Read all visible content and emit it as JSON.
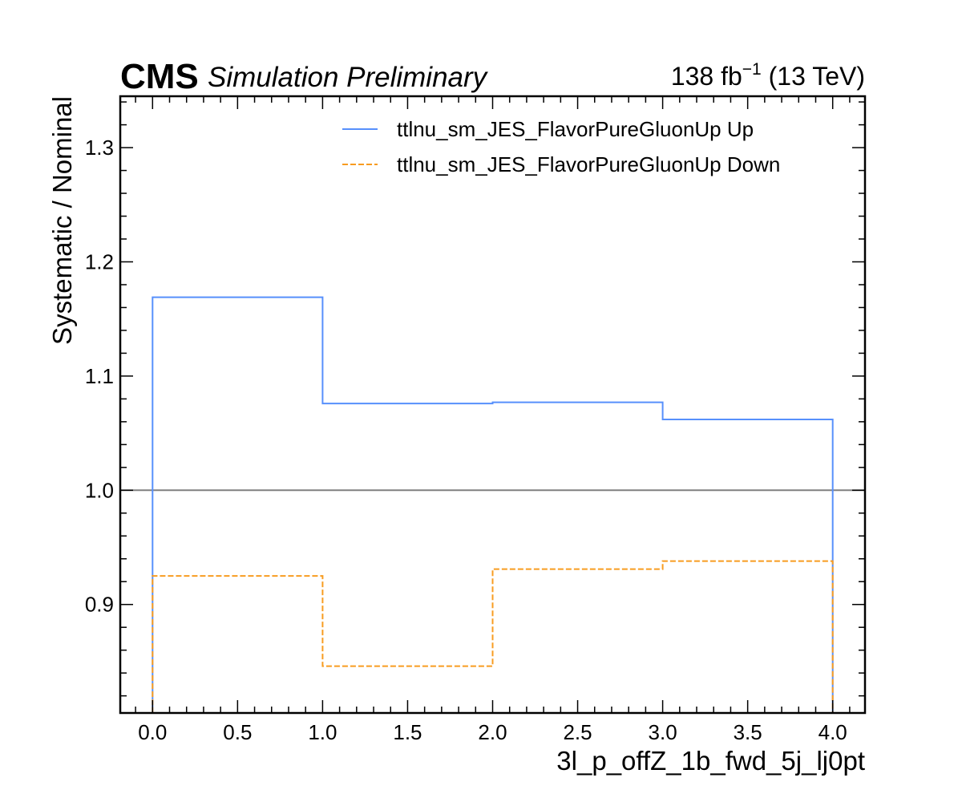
{
  "header": {
    "cms_label": "CMS",
    "cms_sublabel": "Simulation Preliminary",
    "lumi_value": "138 fb",
    "lumi_exponent": "−1",
    "lumi_energy": " (13 TeV)"
  },
  "chart_data": {
    "type": "line",
    "drawstyle": "steps",
    "xlabel": "3l_p_offZ_1b_fwd_5j_lj0pt",
    "ylabel": "Systematic / Nominal",
    "xlim": [
      -0.19,
      4.19
    ],
    "ylim": [
      0.805,
      1.345
    ],
    "xticks": [
      0.0,
      0.5,
      1.0,
      1.5,
      2.0,
      2.5,
      3.0,
      3.5,
      4.0
    ],
    "xtick_labels": [
      "0.0",
      "0.5",
      "1.0",
      "1.5",
      "2.0",
      "2.5",
      "3.0",
      "3.5",
      "4.0"
    ],
    "yticks": [
      0.9,
      1.0,
      1.1,
      1.2,
      1.3
    ],
    "ytick_labels": [
      "0.9",
      "1.0",
      "1.1",
      "1.2",
      "1.3"
    ],
    "bin_edges": [
      0,
      1,
      2,
      3,
      4
    ],
    "reference_line": 1.0,
    "legend_position": "upper-right",
    "series": [
      {
        "name": "ttlnu_sm_JES_FlavorPureGluonUp Up",
        "values": [
          1.169,
          1.076,
          1.077,
          1.062
        ],
        "color": "#5790fc",
        "linestyle": "solid"
      },
      {
        "name": "ttlnu_sm_JES_FlavorPureGluonUp Down",
        "values": [
          0.925,
          0.846,
          0.931,
          0.938
        ],
        "color": "#f89c20",
        "linestyle": "dashed"
      }
    ]
  }
}
